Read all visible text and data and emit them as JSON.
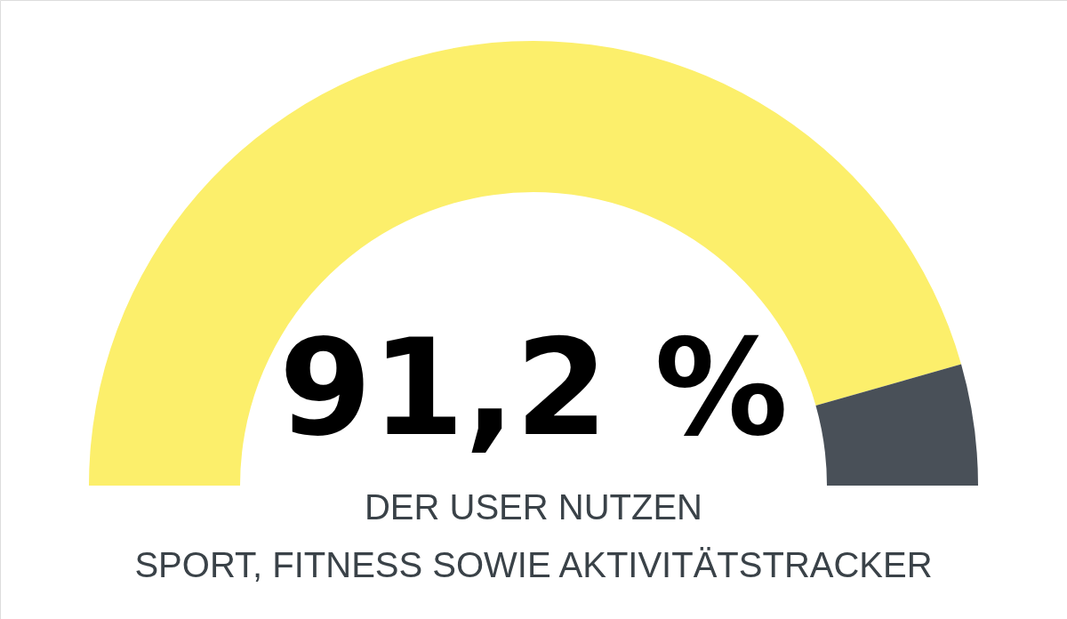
{
  "chart_data": {
    "type": "donut",
    "categories": [
      null,
      null
    ],
    "values": [
      91.2,
      8.8
    ],
    "colors": [
      "#fcef6b",
      "#495058"
    ],
    "value_labels": [
      "91,2 %",
      null
    ],
    "annotations": [
      "DER USER NUTZEN",
      "SPORT, FITNESS SOWIE AKTIVITÄTSTRACKER"
    ]
  }
}
